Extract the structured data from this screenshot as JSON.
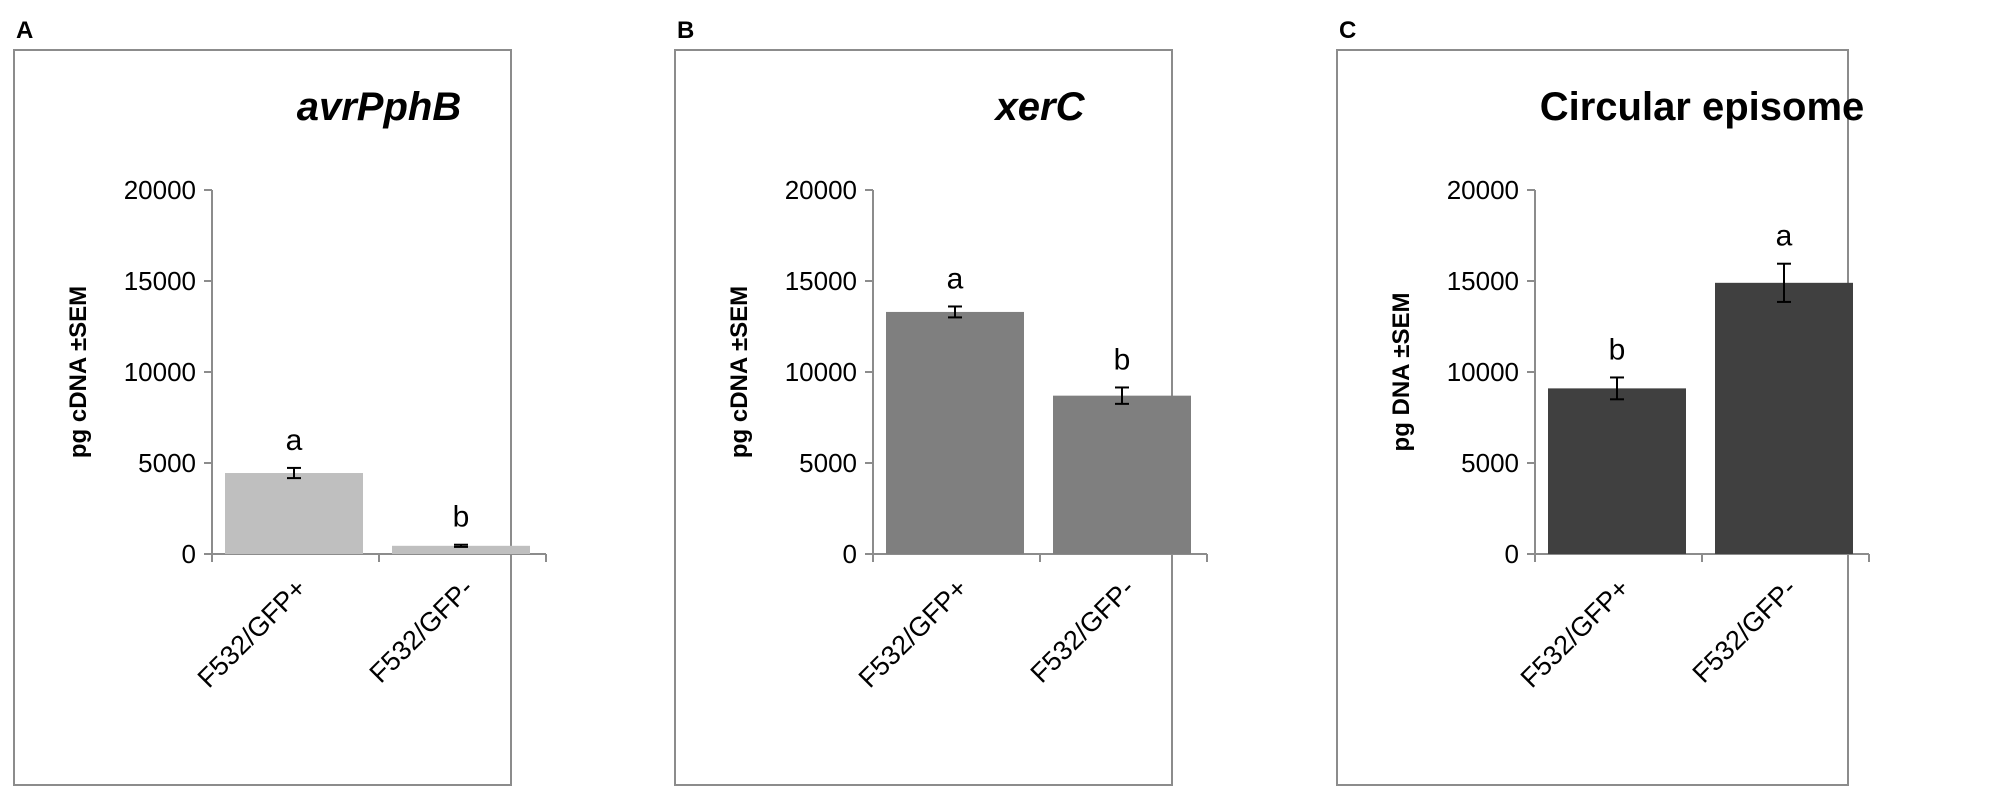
{
  "panels": [
    {
      "letter": "A",
      "title": "avrPphB",
      "title_italic": true,
      "ylabel": "pg cDNA ±SEM",
      "bar_color": "#bfbfbf",
      "yticks": [
        "0",
        "5000",
        "10000",
        "15000",
        "20000"
      ],
      "categories": [
        "F532/GFP+",
        "F532/GFP-"
      ],
      "sig_letters": [
        "a",
        "b"
      ]
    },
    {
      "letter": "B",
      "title": "xerC",
      "title_italic": true,
      "ylabel": "pg cDNA ±SEM",
      "bar_color": "#7f7f7f",
      "yticks": [
        "0",
        "5000",
        "10000",
        "15000",
        "20000"
      ],
      "categories": [
        "F532/GFP+",
        "F532/GFP-"
      ],
      "sig_letters": [
        "a",
        "b"
      ]
    },
    {
      "letter": "C",
      "title": "Circular episome",
      "title_italic": false,
      "ylabel": "pg DNA ±SEM",
      "bar_color": "#404040",
      "yticks": [
        "0",
        "5000",
        "10000",
        "15000",
        "20000"
      ],
      "categories": [
        "F532/GFP+",
        "F532/GFP-"
      ],
      "sig_letters": [
        "b",
        "a"
      ]
    }
  ],
  "chart_data": [
    {
      "type": "bar",
      "title": "avrPphB",
      "categories": [
        "F532/GFP+",
        "F532/GFP-"
      ],
      "values": [
        4450,
        450
      ],
      "errors": [
        280,
        60
      ],
      "ylabel": "pg cDNA ±SEM",
      "ylim": [
        0,
        20000
      ],
      "grid": false
    },
    {
      "type": "bar",
      "title": "xerC",
      "categories": [
        "F532/GFP+",
        "F532/GFP-"
      ],
      "values": [
        13300,
        8700
      ],
      "errors": [
        300,
        450
      ],
      "ylabel": "pg cDNA ±SEM",
      "ylim": [
        0,
        20000
      ],
      "grid": false
    },
    {
      "type": "bar",
      "title": "Circular episome",
      "categories": [
        "F532/GFP+",
        "F532/GFP-"
      ],
      "values": [
        9100,
        14900
      ],
      "errors": [
        600,
        1050
      ],
      "ylabel": "pg DNA ±SEM",
      "ylim": [
        0,
        20000
      ],
      "grid": false
    }
  ]
}
